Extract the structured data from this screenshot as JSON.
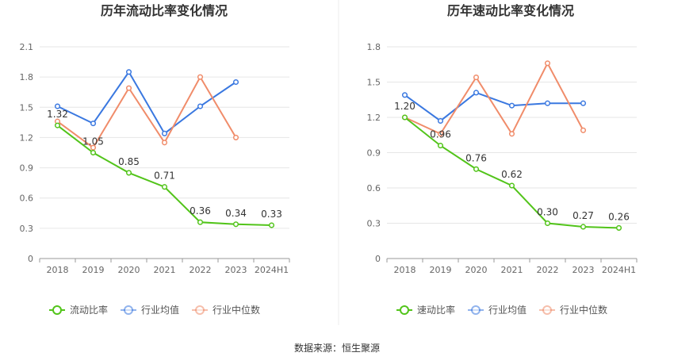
{
  "chart_data": [
    {
      "type": "line",
      "title": "历年流动比率变化情况",
      "categories": [
        "2018",
        "2019",
        "2020",
        "2021",
        "2022",
        "2023",
        "2024H1"
      ],
      "ylim": [
        0,
        2.1
      ],
      "yticks": [
        "0",
        "0.3",
        "0.6",
        "0.9",
        "1.2",
        "1.5",
        "1.8",
        "2.1"
      ],
      "grid": true,
      "legend_position": "bottom",
      "series": [
        {
          "name": "流动比率",
          "color": "#52c41a",
          "values": [
            1.32,
            1.05,
            0.85,
            0.71,
            0.36,
            0.34,
            0.33
          ],
          "labels": [
            "1.32",
            "1.05",
            "0.85",
            "0.71",
            "0.36",
            "0.34",
            "0.33"
          ]
        },
        {
          "name": "行业均值",
          "color": "#3a78e0",
          "values": [
            1.51,
            1.34,
            1.85,
            1.24,
            1.51,
            1.75,
            null
          ]
        },
        {
          "name": "行业中位数",
          "color": "#f08c6a",
          "values": [
            1.36,
            1.1,
            1.69,
            1.15,
            1.8,
            1.2,
            null
          ]
        }
      ]
    },
    {
      "type": "line",
      "title": "历年速动比率变化情况",
      "categories": [
        "2018",
        "2019",
        "2020",
        "2021",
        "2022",
        "2023",
        "2024H1"
      ],
      "ylim": [
        0,
        1.8
      ],
      "yticks": [
        "0",
        "0.3",
        "0.6",
        "0.9",
        "1.2",
        "1.5",
        "1.8"
      ],
      "grid": true,
      "legend_position": "bottom",
      "series": [
        {
          "name": "速动比率",
          "color": "#52c41a",
          "values": [
            1.2,
            0.96,
            0.76,
            0.62,
            0.3,
            0.27,
            0.26
          ],
          "labels": [
            "1.20",
            "0.96",
            "0.76",
            "0.62",
            "0.30",
            "0.27",
            "0.26"
          ]
        },
        {
          "name": "行业均值",
          "color": "#3a78e0",
          "values": [
            1.39,
            1.17,
            1.41,
            1.3,
            1.32,
            1.32,
            null
          ]
        },
        {
          "name": "行业中位数",
          "color": "#f08c6a",
          "values": [
            1.2,
            1.06,
            1.54,
            1.06,
            1.66,
            1.09,
            null
          ]
        }
      ]
    }
  ],
  "source_text": "数据来源：恒生聚源"
}
